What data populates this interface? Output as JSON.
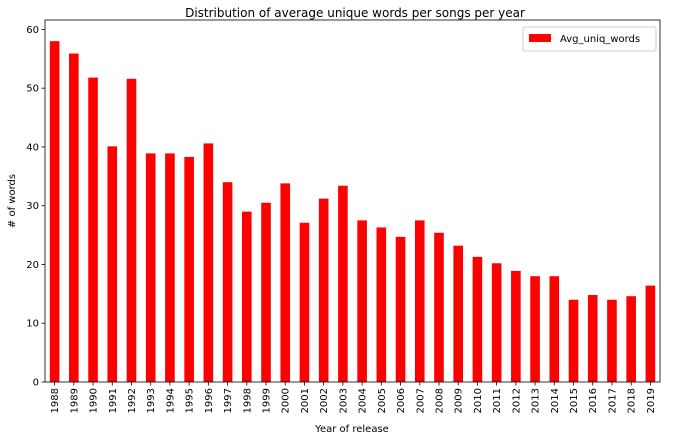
{
  "chart_data": {
    "type": "bar",
    "title": "Distribution of average unique words per songs per year",
    "xlabel": "Year of release",
    "ylabel": "# of words",
    "categories": [
      "1988",
      "1989",
      "1990",
      "1991",
      "1992",
      "1993",
      "1994",
      "1995",
      "1996",
      "1997",
      "1998",
      "1999",
      "2000",
      "2001",
      "2002",
      "2003",
      "2004",
      "2005",
      "2006",
      "2007",
      "2008",
      "2009",
      "2010",
      "2011",
      "2012",
      "2013",
      "2014",
      "2015",
      "2016",
      "2017",
      "2018",
      "2019"
    ],
    "series": [
      {
        "name": "Avg_uniq_words",
        "color": "#ff0000",
        "values": [
          58.0,
          55.9,
          51.8,
          40.1,
          51.6,
          38.9,
          38.9,
          38.3,
          40.6,
          34.0,
          29.0,
          30.5,
          33.8,
          27.1,
          31.2,
          33.4,
          27.5,
          26.3,
          24.7,
          27.5,
          25.4,
          23.2,
          21.3,
          20.2,
          18.9,
          18.0,
          18.0,
          14.0,
          14.8,
          14.0,
          14.6,
          16.4
        ]
      }
    ],
    "ylim": [
      0,
      61.6
    ],
    "yticks": [
      0,
      10,
      20,
      30,
      40,
      50,
      60
    ],
    "grid": false,
    "legend_position": "top-right"
  }
}
